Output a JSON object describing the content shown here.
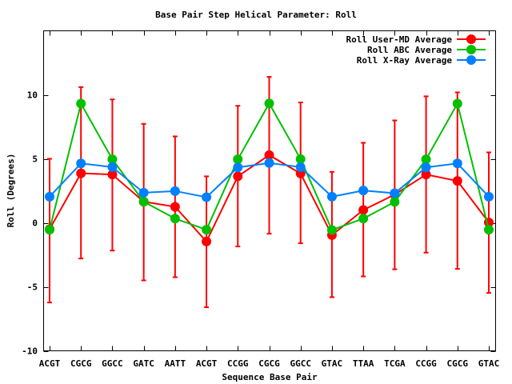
{
  "chart_data": {
    "type": "line",
    "title": "Base Pair Step Helical Parameter: Roll",
    "xlabel": "Sequence Base Pair",
    "ylabel": "Roll (Degrees)",
    "categories": [
      "ACGT",
      "CGCG",
      "GGCC",
      "GATC",
      "AATT",
      "ACGT",
      "CCGG",
      "CGCG",
      "GGCC",
      "GTAC",
      "TTAA",
      "TCGA",
      "CCGG",
      "CGCG",
      "GTAC"
    ],
    "ylim": [
      -10,
      15
    ],
    "yticks": [
      -10,
      -5,
      0,
      5,
      10
    ],
    "ytick_labels": [
      "-10",
      "-5",
      "0",
      "5",
      "10"
    ],
    "grid": false,
    "legend_position": "top-right",
    "series": [
      {
        "name": "Roll User-MD Average",
        "color": "#ff0000",
        "values": [
          -0.5,
          3.87,
          3.77,
          1.65,
          1.25,
          -1.46,
          3.63,
          5.29,
          3.85,
          -0.96,
          1.0,
          2.2,
          3.77,
          3.27,
          0.03
        ],
        "error_low": [
          -6.23,
          -2.79,
          -2.17,
          -4.5,
          -4.25,
          -6.6,
          -1.85,
          -0.85,
          -1.6,
          -5.81,
          -4.19,
          -3.63,
          -2.33,
          -3.6,
          -5.48
        ],
        "error_high": [
          5.0,
          10.6,
          9.64,
          7.73,
          6.75,
          3.63,
          9.14,
          11.4,
          9.4,
          3.98,
          6.25,
          8.0,
          9.88,
          10.19,
          5.5
        ]
      },
      {
        "name": "Roll ABC Average",
        "color": "#00c000",
        "values": [
          -0.54,
          9.31,
          4.96,
          1.65,
          0.33,
          -0.54,
          4.96,
          9.33,
          4.98,
          -0.56,
          0.33,
          1.63,
          4.96,
          9.31,
          -0.54
        ]
      },
      {
        "name": "Roll X-Ray Average",
        "color": "#0080ff",
        "values": [
          2.04,
          4.64,
          4.35,
          2.35,
          2.48,
          2.0,
          4.33,
          4.67,
          4.35,
          2.04,
          2.52,
          2.31,
          4.33,
          4.64,
          2.04
        ]
      }
    ]
  }
}
